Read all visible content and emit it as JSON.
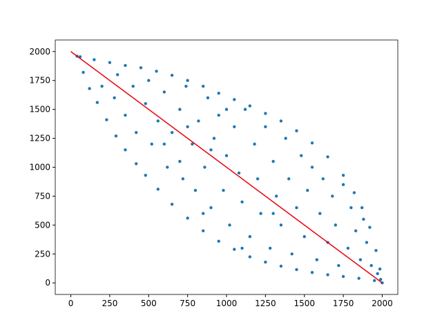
{
  "chart_data": {
    "type": "scatter",
    "x": [
      60,
      150,
      250,
      350,
      450,
      550,
      650,
      750,
      850,
      950,
      1050,
      1150,
      1250,
      1350,
      1450,
      1550,
      1650,
      1750,
      1820,
      1870,
      1920,
      1960,
      1985,
      80,
      120,
      170,
      230,
      290,
      350,
      420,
      480,
      560,
      650,
      750,
      850,
      950,
      1050,
      1150,
      1250,
      1350,
      1450,
      1550,
      1650,
      1750,
      1850,
      1950,
      200,
      280,
      300,
      350,
      400,
      420,
      480,
      500,
      520,
      560,
      600,
      620,
      650,
      700,
      720,
      740,
      780,
      800,
      820,
      860,
      880,
      900,
      920,
      950,
      980,
      1000,
      1020,
      1050,
      1080,
      1100,
      1120,
      1150,
      1180,
      1200,
      1220,
      1250,
      1280,
      1300,
      1320,
      1350,
      1380,
      1400,
      1420,
      1450,
      1480,
      1500,
      1520,
      1550,
      1580,
      1600,
      1620,
      1650,
      1680,
      1700,
      1720,
      1750,
      1780,
      1800,
      1830,
      1860,
      1880,
      1900,
      1930,
      1970,
      1990,
      2000,
      40,
      900,
      700,
      1100,
      600,
      750,
      1300,
      1000,
      850
    ],
    "y": [
      1955,
      1930,
      1905,
      1880,
      1860,
      1830,
      1795,
      1750,
      1700,
      1640,
      1585,
      1530,
      1465,
      1400,
      1315,
      1210,
      1090,
      930,
      780,
      650,
      480,
      280,
      120,
      1820,
      1680,
      1560,
      1410,
      1270,
      1150,
      1030,
      930,
      810,
      680,
      560,
      450,
      360,
      290,
      225,
      180,
      145,
      115,
      90,
      70,
      55,
      40,
      20,
      1700,
      1600,
      1800,
      1450,
      1700,
      1300,
      1550,
      1750,
      1200,
      1400,
      1650,
      1000,
      1300,
      1500,
      900,
      1700,
      1200,
      800,
      1400,
      1000,
      1600,
      650,
      1250,
      1450,
      800,
      1100,
      500,
      1350,
      950,
      700,
      1500,
      400,
      1200,
      900,
      600,
      1350,
      300,
      1050,
      750,
      500,
      1250,
      900,
      250,
      650,
      1100,
      400,
      800,
      1000,
      200,
      600,
      900,
      350,
      750,
      500,
      150,
      850,
      300,
      650,
      450,
      200,
      550,
      350,
      150,
      80,
      30,
      0,
      1960,
      1150,
      1050,
      300,
      1200,
      1350,
      600,
      1500,
      600
    ],
    "color": "#1f77b4",
    "line": {
      "x": [
        0,
        2000
      ],
      "y": [
        2000,
        0
      ],
      "color": "#e8000b"
    },
    "xlim": [
      -100,
      2100
    ],
    "ylim": [
      -100,
      2100
    ],
    "xticks": [
      0,
      250,
      500,
      750,
      1000,
      1250,
      1500,
      1750,
      2000
    ],
    "yticks": [
      0,
      250,
      500,
      750,
      1000,
      1250,
      1500,
      1750,
      2000
    ]
  }
}
